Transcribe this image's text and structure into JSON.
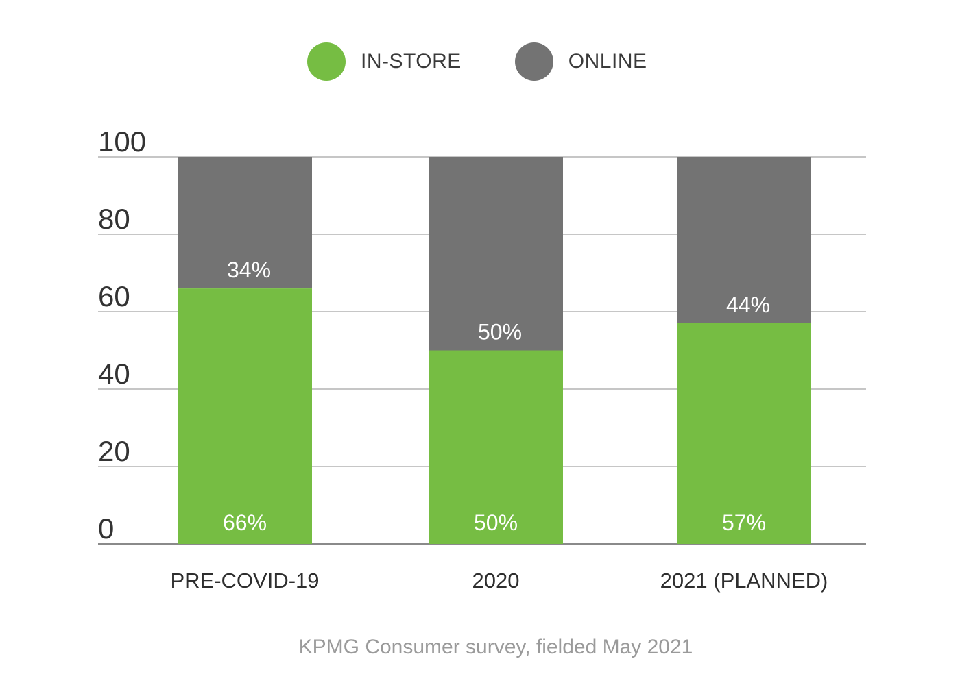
{
  "legend": {
    "items": [
      {
        "label": "IN-STORE",
        "color": "#76bd43"
      },
      {
        "label": "ONLINE",
        "color": "#737373"
      }
    ]
  },
  "source_note": "KPMG Consumer survey, fielded May 2021",
  "chart_data": {
    "type": "bar",
    "stacked": true,
    "categories": [
      "PRE-COVID-19",
      "2020",
      "2021 (PLANNED)"
    ],
    "series": [
      {
        "name": "IN-STORE",
        "values": [
          66,
          50,
          57
        ],
        "labels": [
          "66%",
          "50%",
          "57%"
        ],
        "color": "#76bd43"
      },
      {
        "name": "ONLINE",
        "values": [
          34,
          50,
          44
        ],
        "labels": [
          "34%",
          "50%",
          "44%"
        ],
        "color": "#737373"
      }
    ],
    "ylim": [
      0,
      100
    ],
    "yticks": [
      0,
      20,
      40,
      60,
      80,
      100
    ],
    "ytick_labels": [
      "0",
      "20",
      "40",
      "60",
      "80",
      "100"
    ],
    "grid": true,
    "legend_position": "top-center",
    "title": "",
    "xlabel": "",
    "ylabel": ""
  }
}
